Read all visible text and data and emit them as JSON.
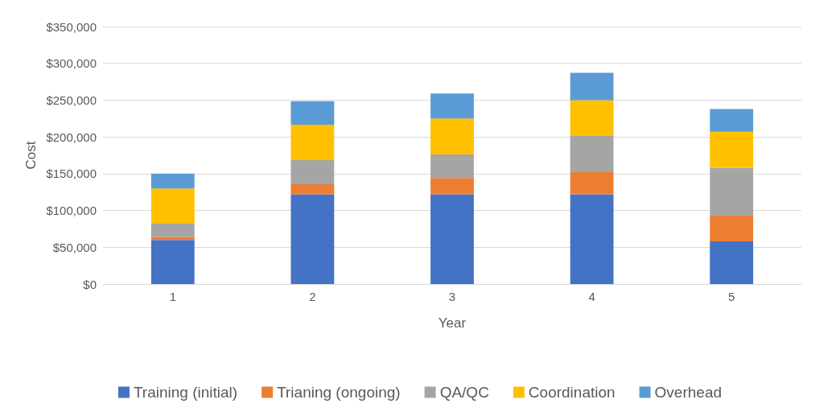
{
  "chart_data": {
    "type": "bar",
    "stacked": true,
    "xlabel": "Year",
    "ylabel": "Cost",
    "categories": [
      "1",
      "2",
      "3",
      "4",
      "5"
    ],
    "series": [
      {
        "name": "Training (initial)",
        "color": "#4472c4",
        "values": [
          60000,
          122000,
          122000,
          122000,
          58000
        ]
      },
      {
        "name": "Trianing (ongoing)",
        "color": "#ed7d31",
        "values": [
          4000,
          13500,
          22000,
          30000,
          35000
        ]
      },
      {
        "name": "QA/QC",
        "color": "#a5a5a5",
        "values": [
          18000,
          33000,
          32000,
          50000,
          65000
        ]
      },
      {
        "name": "Coordination",
        "color": "#ffc000",
        "values": [
          48000,
          48000,
          49000,
          48000,
          49000
        ]
      },
      {
        "name": "Overhead",
        "color": "#5b9bd5",
        "values": [
          20000,
          32000,
          34000,
          37000,
          31000
        ]
      }
    ],
    "ylim": [
      0,
      350000
    ],
    "yticks": [
      {
        "value": 0,
        "label": "$0"
      },
      {
        "value": 50000,
        "label": "$50,000"
      },
      {
        "value": 100000,
        "label": "$100,000"
      },
      {
        "value": 150000,
        "label": "$150,000"
      },
      {
        "value": 200000,
        "label": "$200,000"
      },
      {
        "value": 250000,
        "label": "$250,000"
      },
      {
        "value": 300000,
        "label": "$300,000"
      },
      {
        "value": 350000,
        "label": "$350,000"
      }
    ],
    "grid": "y",
    "legend": "bottom"
  }
}
